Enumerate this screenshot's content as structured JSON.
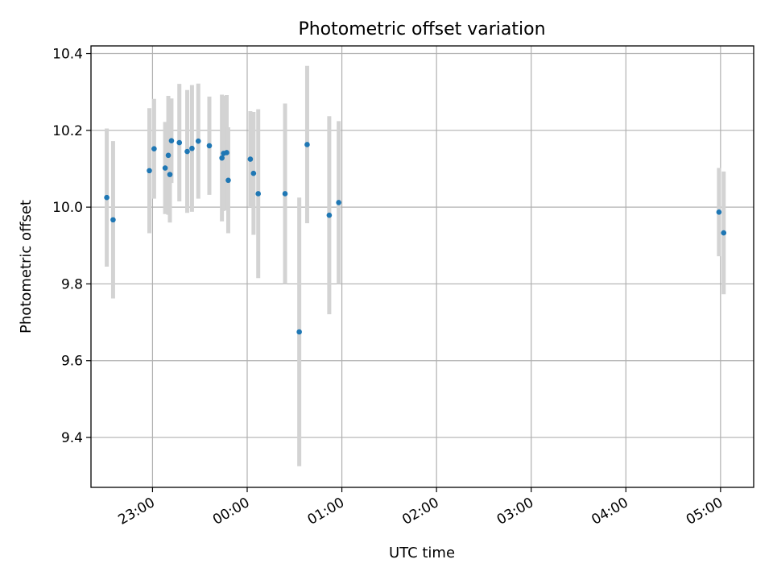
{
  "chart_data": {
    "type": "scatter",
    "title": "Photometric offset variation",
    "xlabel": "UTC time",
    "ylabel": "Photometric offset",
    "x_axis": "time (UTC)",
    "xlim": [
      "22:21",
      "05:21"
    ],
    "ylim": [
      9.27,
      10.42
    ],
    "x_ticks": [
      "23:00",
      "00:00",
      "01:00",
      "02:00",
      "03:00",
      "04:00",
      "05:00"
    ],
    "y_ticks": [
      "9.4",
      "9.6",
      "9.8",
      "10.0",
      "10.2",
      "10.4"
    ],
    "grid": true,
    "marker_color": "#1f77b4",
    "errorbar_color": "#d3d3d3",
    "points": [
      {
        "x": "22:31",
        "y": 10.025,
        "err": 0.18
      },
      {
        "x": "22:35",
        "y": 9.967,
        "err": 0.205
      },
      {
        "x": "22:58",
        "y": 10.095,
        "err": 0.163
      },
      {
        "x": "23:01",
        "y": 10.152,
        "err": 0.13
      },
      {
        "x": "23:08",
        "y": 10.102,
        "err": 0.12
      },
      {
        "x": "23:10",
        "y": 10.135,
        "err": 0.155
      },
      {
        "x": "23:11",
        "y": 10.085,
        "err": 0.125
      },
      {
        "x": "23:12",
        "y": 10.173,
        "err": 0.11
      },
      {
        "x": "23:17",
        "y": 10.168,
        "err": 0.153
      },
      {
        "x": "23:22",
        "y": 10.145,
        "err": 0.16
      },
      {
        "x": "23:25",
        "y": 10.153,
        "err": 0.165
      },
      {
        "x": "23:29",
        "y": 10.172,
        "err": 0.15
      },
      {
        "x": "23:36",
        "y": 10.16,
        "err": 0.128
      },
      {
        "x": "23:44",
        "y": 10.128,
        "err": 0.165
      },
      {
        "x": "23:45",
        "y": 10.14,
        "err": 0.15
      },
      {
        "x": "23:47",
        "y": 10.142,
        "err": 0.15
      },
      {
        "x": "23:48",
        "y": 10.07,
        "err": 0.138
      },
      {
        "x": "00:02",
        "y": 10.125,
        "err": 0.125
      },
      {
        "x": "00:04",
        "y": 10.088,
        "err": 0.16
      },
      {
        "x": "00:07",
        "y": 10.035,
        "err": 0.22
      },
      {
        "x": "00:24",
        "y": 10.035,
        "err": 0.235
      },
      {
        "x": "00:33",
        "y": 9.675,
        "err": 0.35
      },
      {
        "x": "00:38",
        "y": 10.163,
        "err": 0.205
      },
      {
        "x": "00:52",
        "y": 9.979,
        "err": 0.258
      },
      {
        "x": "00:58",
        "y": 10.012,
        "err": 0.212
      },
      {
        "x": "04:59",
        "y": 9.987,
        "err": 0.115
      },
      {
        "x": "05:02",
        "y": 9.933,
        "err": 0.16
      }
    ]
  }
}
